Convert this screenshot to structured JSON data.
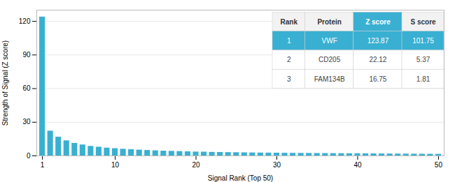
{
  "chart_data": {
    "type": "bar",
    "x": [
      1,
      2,
      3,
      4,
      5,
      6,
      7,
      8,
      9,
      10,
      11,
      12,
      13,
      14,
      15,
      16,
      17,
      18,
      19,
      20,
      21,
      22,
      23,
      24,
      25,
      26,
      27,
      28,
      29,
      30,
      31,
      32,
      33,
      34,
      35,
      36,
      37,
      38,
      39,
      40,
      41,
      42,
      43,
      44,
      45,
      46,
      47,
      48,
      49,
      50
    ],
    "values": [
      123.87,
      22.12,
      16.75,
      13.5,
      11.2,
      9.8,
      8.5,
      7.8,
      7.0,
      6.5,
      6.0,
      5.6,
      5.2,
      4.9,
      4.6,
      4.3,
      4.1,
      3.9,
      3.7,
      3.5,
      3.4,
      3.2,
      3.1,
      3.0,
      2.9,
      2.8,
      2.7,
      2.6,
      2.55,
      2.5,
      2.4,
      2.35,
      2.3,
      2.25,
      2.2,
      2.15,
      2.1,
      2.05,
      2.0,
      1.95,
      1.9,
      1.85,
      1.8,
      1.75,
      1.7,
      1.65,
      1.6,
      1.55,
      1.5,
      1.45
    ],
    "color": "#39b0d2",
    "xlabel": "Signal Rank (Top 50)",
    "ylabel": "Strength of Signal (Z score)",
    "xlim": [
      0.3,
      50.7
    ],
    "xticks": [
      1,
      10,
      20,
      30,
      40,
      50
    ],
    "ylim": [
      0,
      130
    ],
    "yticks": [
      0,
      30,
      60,
      90,
      120
    ],
    "grid": true,
    "table": {
      "headers": [
        "Rank",
        "Protein",
        "Z score",
        "S score"
      ],
      "rows": [
        [
          "1",
          "VWF",
          "123.87",
          "101.75"
        ],
        [
          "2",
          "CD205",
          "22.12",
          "5.37"
        ],
        [
          "3",
          "FAM134B",
          "16.75",
          "1.81"
        ]
      ]
    }
  }
}
